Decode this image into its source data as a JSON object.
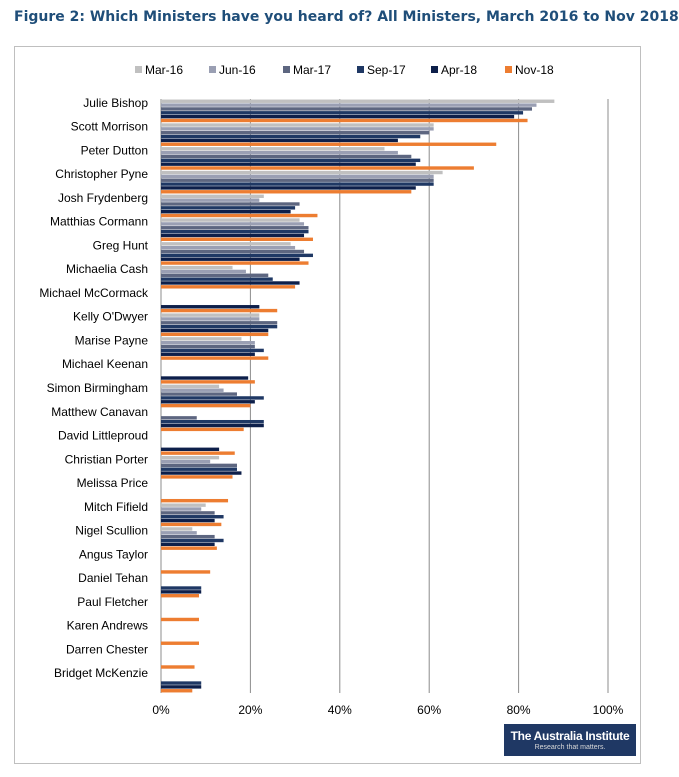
{
  "chart_data": {
    "type": "bar",
    "orientation": "horizontal",
    "title": "Figure 2: Which Ministers have you heard of? All Ministers, March 2016 to Nov 2018",
    "xlabel": "",
    "ylabel": "",
    "xlim": [
      0,
      100
    ],
    "x_ticks": [
      "0%",
      "20%",
      "40%",
      "60%",
      "80%",
      "100%"
    ],
    "grid": true,
    "legend_position": "top",
    "categories": [
      "Julie Bishop",
      "Scott Morrison",
      "Peter Dutton",
      "Christopher Pyne",
      "Josh Frydenberg",
      "Matthias Cormann",
      "Greg Hunt",
      "Michaelia Cash",
      "Michael McCormack",
      "Kelly O'Dwyer",
      "Marise Payne",
      "Michael Keenan",
      "Simon Birmingham",
      "Matthew Canavan",
      "David Littleproud",
      "Christian Porter",
      "Melissa Price",
      "Mitch Fifield",
      "Nigel Scullion",
      "Angus Taylor",
      "Daniel Tehan",
      "Paul Fletcher",
      "Karen Andrews",
      "Darren Chester",
      "Bridget McKenzie"
    ],
    "series": [
      {
        "name": "Mar-16",
        "color": "#c0c0c0",
        "values": [
          88,
          61,
          50,
          63,
          23,
          31,
          29,
          16,
          null,
          22,
          18,
          null,
          13,
          null,
          null,
          13,
          null,
          10,
          7,
          null,
          null,
          null,
          null,
          null,
          null
        ]
      },
      {
        "name": "Jun-16",
        "color": "#9a9fb3",
        "values": [
          84,
          61,
          53,
          61,
          22,
          32,
          30,
          19,
          null,
          22,
          21,
          null,
          14,
          null,
          null,
          11,
          null,
          9,
          8,
          null,
          null,
          null,
          null,
          null,
          null
        ]
      },
      {
        "name": "Mar-17",
        "color": "#5d6680",
        "values": [
          83,
          60,
          56,
          61,
          31,
          33,
          32,
          24,
          null,
          26,
          21,
          null,
          17,
          8,
          null,
          17,
          null,
          12,
          12,
          null,
          null,
          null,
          null,
          null,
          null
        ]
      },
      {
        "name": "Sep-17",
        "color": "#1f3864",
        "values": [
          81,
          58,
          58,
          61,
          30,
          33,
          34,
          25,
          0,
          26,
          23,
          0,
          23,
          23,
          0,
          17,
          0,
          14,
          14,
          0,
          9,
          0,
          0,
          0,
          9
        ]
      },
      {
        "name": "Apr-18",
        "color": "#0d1f4a",
        "values": [
          79,
          53,
          57,
          57,
          29,
          32,
          31,
          31,
          22,
          24,
          21,
          19.5,
          21,
          23,
          13,
          18,
          0,
          12,
          12,
          0,
          9,
          0,
          0,
          0,
          9
        ]
      },
      {
        "name": "Nov-18",
        "color": "#ed7d31",
        "values": [
          82,
          75,
          70,
          56,
          35,
          34,
          33,
          30,
          26,
          24,
          24,
          21,
          20,
          18.5,
          16.5,
          16,
          15,
          13.5,
          12.5,
          11,
          8.5,
          8.5,
          8.5,
          7.5,
          7
        ]
      }
    ]
  },
  "logo": {
    "name": "The Australia Institute",
    "tagline": "Research that matters."
  }
}
